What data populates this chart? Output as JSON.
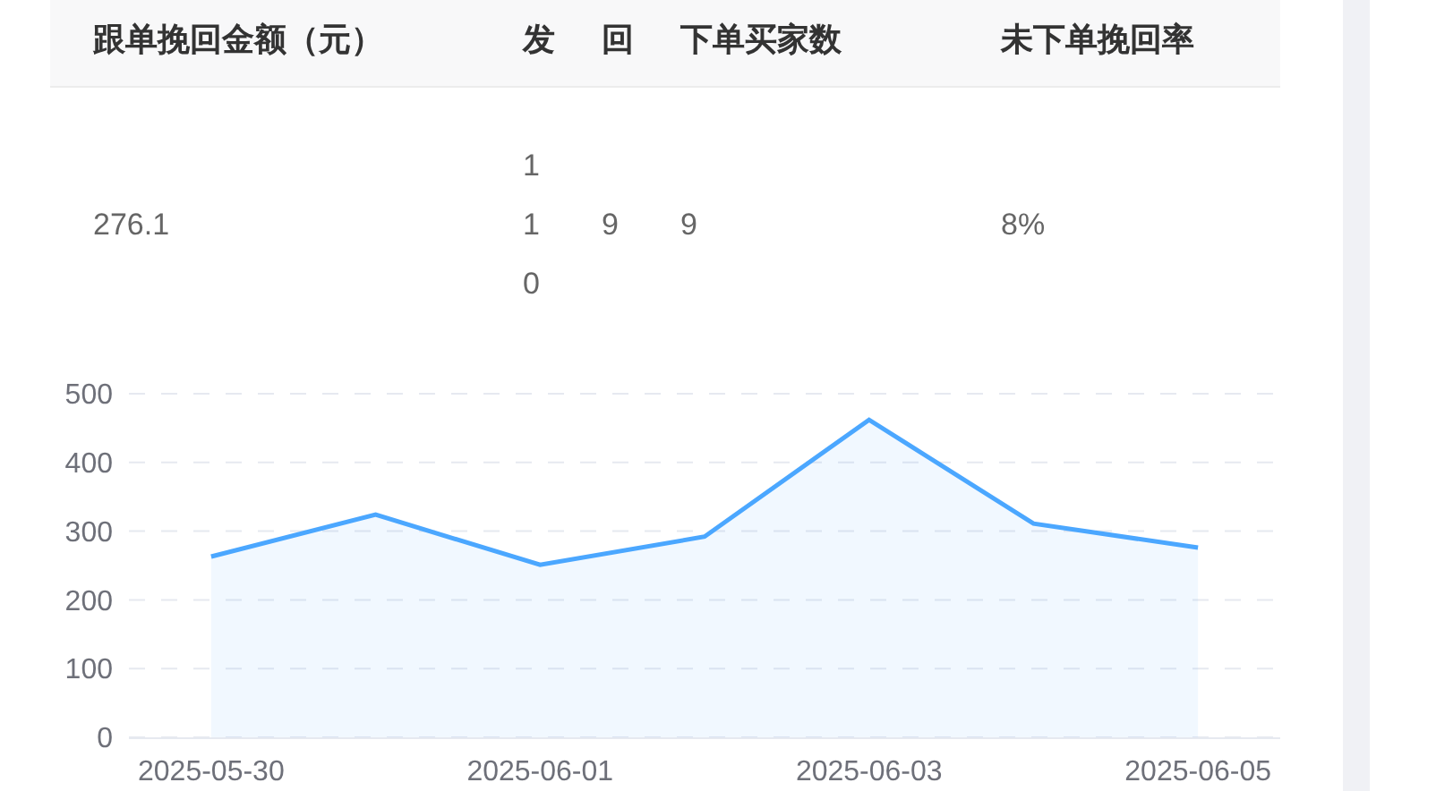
{
  "chart_data": [
    {
      "type": "other",
      "categories": [
        "跟单挽回金额（元）",
        "发",
        "回",
        "下单买家数",
        "未下单挽回率"
      ],
      "annotations": [
        "276.1",
        "110",
        "9",
        "9",
        "8%"
      ]
    },
    {
      "type": "area",
      "categories": [
        "2025-05-30",
        null,
        "2025-06-01",
        null,
        "2025-06-03",
        null,
        "2025-06-05"
      ],
      "series": [
        {
          "color": "#4ba7ff",
          "values": [
            263,
            324,
            251,
            292,
            462,
            311,
            276
          ]
        }
      ],
      "ylim": [
        0,
        500
      ],
      "yticks": [
        0,
        100,
        200,
        300,
        400,
        500
      ],
      "grid": "y"
    }
  ]
}
